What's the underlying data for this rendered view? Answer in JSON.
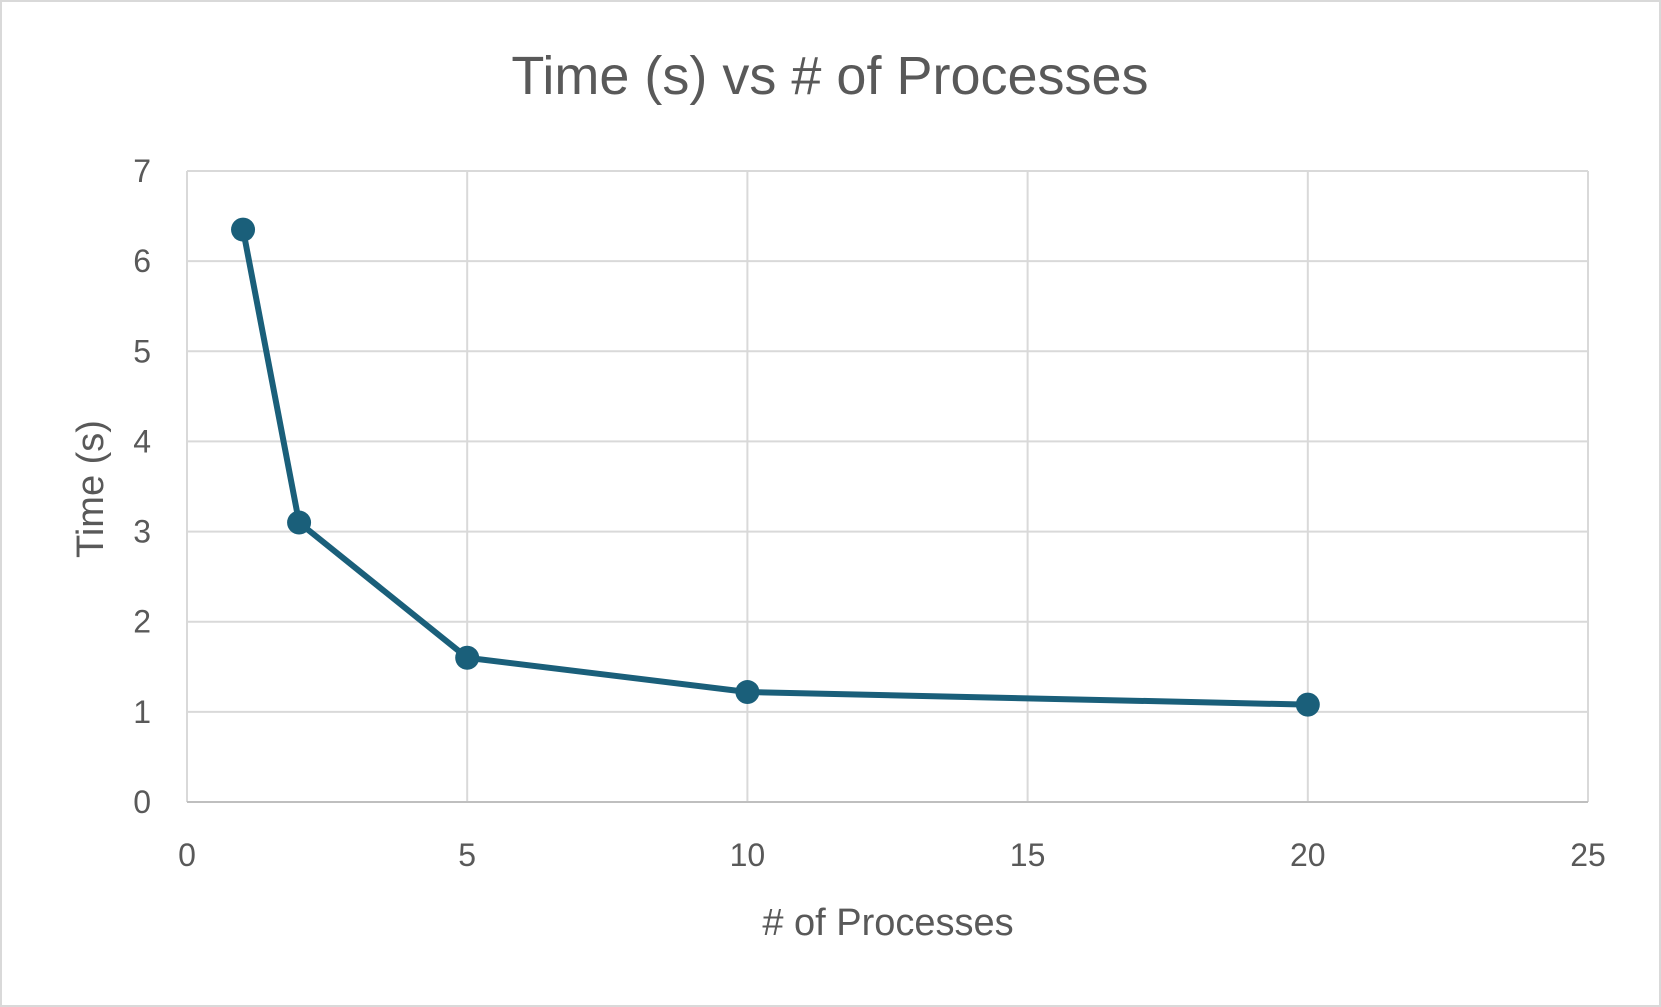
{
  "chart_data": {
    "type": "scatter",
    "title": "Time (s) vs # of Processes",
    "xlabel": "# of Processes",
    "ylabel": "Time (s)",
    "xlim": [
      0,
      25
    ],
    "ylim": [
      0,
      7
    ],
    "xticks": [
      0,
      5,
      10,
      15,
      20,
      25
    ],
    "yticks": [
      0,
      1,
      2,
      3,
      4,
      5,
      6,
      7
    ],
    "grid": true,
    "legend": "none",
    "line_style": "straight lines with markers",
    "color": "#1a5f7a",
    "series": [
      {
        "x": [
          1,
          2,
          5,
          10,
          20
        ],
        "y": [
          6.35,
          3.1,
          1.6,
          1.22,
          1.08
        ]
      }
    ]
  }
}
